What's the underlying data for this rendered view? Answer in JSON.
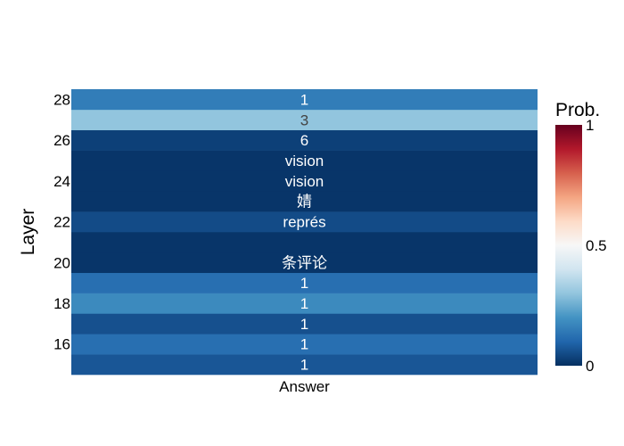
{
  "chart_data": {
    "type": "heatmap",
    "title": "",
    "xlabel": "",
    "ylabel": "Layer",
    "x_categories": [
      "Answer"
    ],
    "y_layers": [
      15,
      16,
      17,
      18,
      19,
      20,
      21,
      22,
      23,
      24,
      25,
      26,
      27,
      28
    ],
    "y_ticks": [
      16,
      18,
      20,
      22,
      24,
      26,
      28
    ],
    "cells": [
      {
        "layer": 15,
        "label": "1",
        "prob": 0.07
      },
      {
        "layer": 16,
        "label": "1",
        "prob": 0.12
      },
      {
        "layer": 17,
        "label": "1",
        "prob": 0.06
      },
      {
        "layer": 18,
        "label": "1",
        "prob": 0.18
      },
      {
        "layer": 19,
        "label": "1",
        "prob": 0.12
      },
      {
        "layer": 20,
        "label": "条评论",
        "prob": 0.01
      },
      {
        "layer": 21,
        "label": "",
        "prob": 0.01
      },
      {
        "layer": 22,
        "label": "représ",
        "prob": 0.05
      },
      {
        "layer": 23,
        "label": "婧",
        "prob": 0.01
      },
      {
        "layer": 24,
        "label": "vision",
        "prob": 0.01
      },
      {
        "layer": 25,
        "label": "vision",
        "prob": 0.01
      },
      {
        "layer": 26,
        "label": "6",
        "prob": 0.03
      },
      {
        "layer": 27,
        "label": "3",
        "prob": 0.3
      },
      {
        "layer": 28,
        "label": "1",
        "prob": 0.15
      }
    ],
    "colorbar": {
      "title": "Prob.",
      "range": [
        0,
        1
      ],
      "ticks": [
        0,
        0.5,
        1
      ],
      "tick_labels": [
        "0",
        "0.5",
        "1"
      ]
    },
    "colorscale": [
      [
        0.0,
        "#053061"
      ],
      [
        0.1,
        "#2166ac"
      ],
      [
        0.2,
        "#4393c3"
      ],
      [
        0.3,
        "#92c5de"
      ],
      [
        0.4,
        "#d1e5f0"
      ],
      [
        0.5,
        "#f7f7f7"
      ],
      [
        0.6,
        "#fddbc7"
      ],
      [
        0.7,
        "#f4a582"
      ],
      [
        0.8,
        "#d6604d"
      ],
      [
        0.9,
        "#b2182b"
      ],
      [
        1.0,
        "#67001f"
      ]
    ]
  }
}
